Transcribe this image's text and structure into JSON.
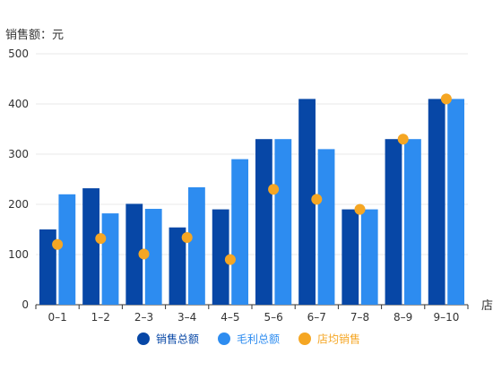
{
  "chart_data": {
    "type": "bar",
    "ylabel": "销售额：元",
    "xlabel": "店",
    "ylim": [
      0,
      500
    ],
    "yticks": [
      0,
      100,
      200,
      300,
      400,
      500
    ],
    "categories": [
      "0–1",
      "1–2",
      "2–3",
      "3–4",
      "4–5",
      "5–6",
      "6–7",
      "7–8",
      "8–9",
      "9–10"
    ],
    "series": [
      {
        "name": "销售总额",
        "type": "bar",
        "color": "#0747a6",
        "values": [
          150,
          232,
          201,
          154,
          190,
          330,
          410,
          190,
          330,
          410
        ]
      },
      {
        "name": "毛利总额",
        "type": "bar",
        "color": "#2d8cf0",
        "values": [
          220,
          182,
          191,
          234,
          290,
          330,
          310,
          190,
          330,
          410
        ]
      },
      {
        "name": "店均销售",
        "type": "scatter",
        "color": "#f5a623",
        "values": [
          120,
          132,
          101,
          134,
          90,
          230,
          210,
          190,
          330,
          410
        ]
      }
    ],
    "legend": {
      "position": "bottom",
      "items": [
        {
          "label": "销售总额",
          "color": "#0747a6",
          "text_color": "#0747a6"
        },
        {
          "label": "毛利总额",
          "color": "#2d8cf0",
          "text_color": "#2d8cf0"
        },
        {
          "label": "店均销售",
          "color": "#f5a623",
          "text_color": "#f5a623"
        }
      ]
    },
    "grid": true
  }
}
